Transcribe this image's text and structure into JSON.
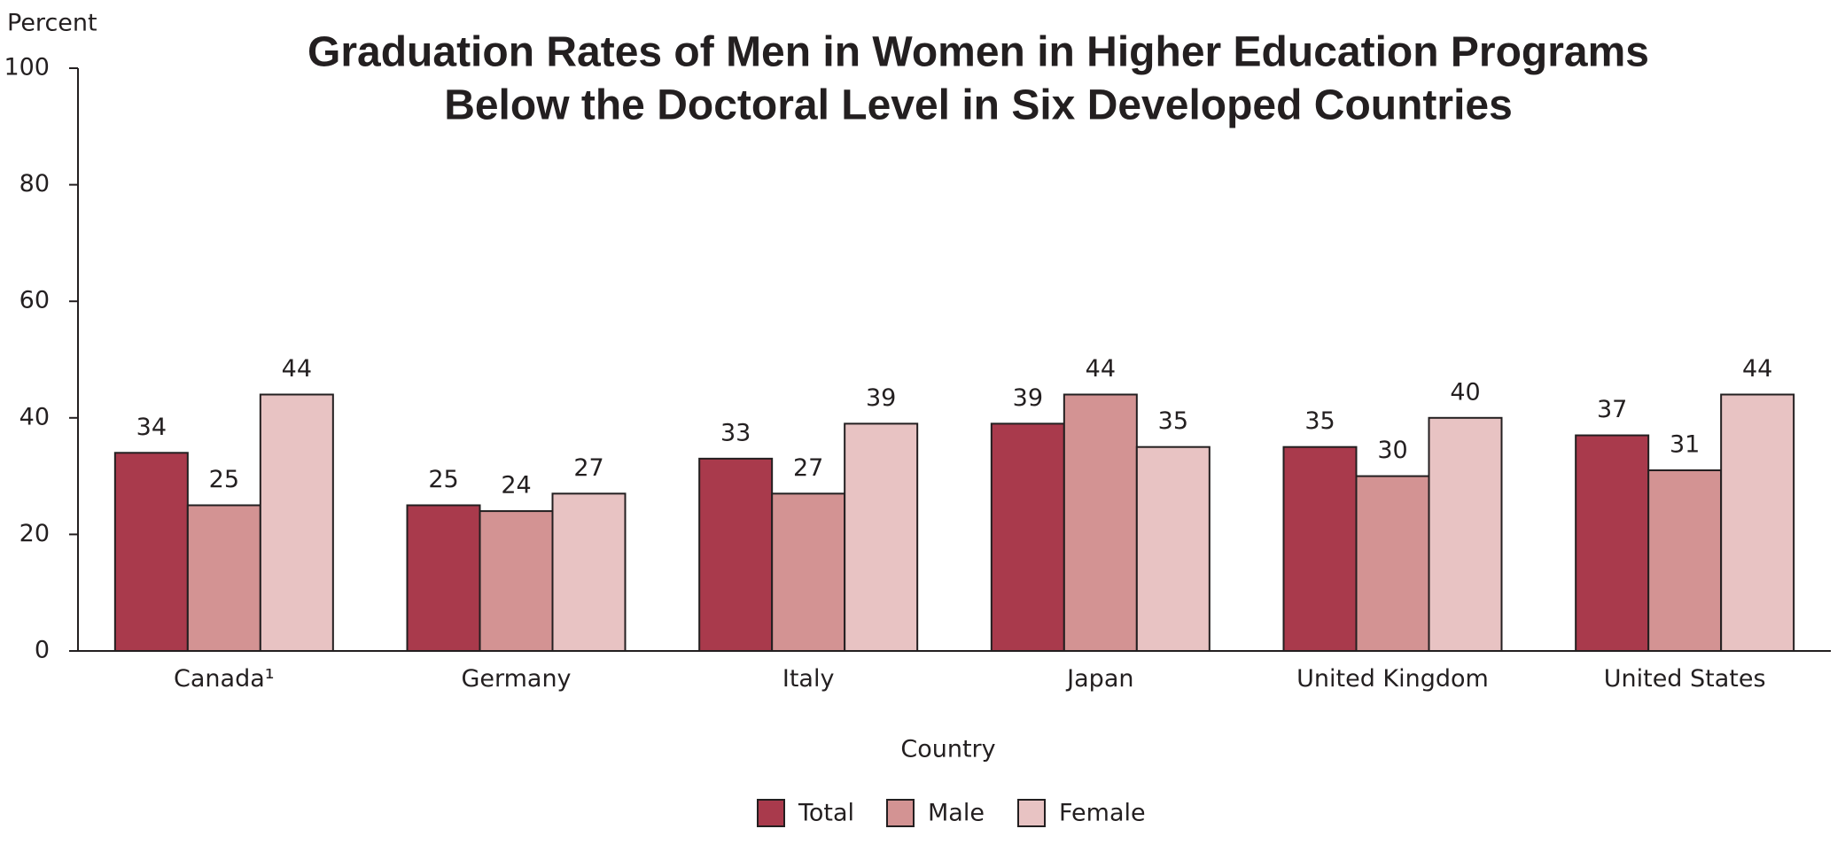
{
  "chart_data": {
    "type": "bar",
    "title": [
      "Graduation Rates of Men in Women in Higher Education Programs",
      "Below the Doctoral Level in Six Developed Countries"
    ],
    "y_label": "Percent",
    "x_label": "Country",
    "categories": [
      "Canada¹",
      "Germany",
      "Italy",
      "Japan",
      "United Kingdom",
      "United States"
    ],
    "series": [
      {
        "name": "Total",
        "color": "#a93a4c",
        "values": [
          34,
          25,
          33,
          39,
          35,
          37
        ]
      },
      {
        "name": "Male",
        "color": "#d39393",
        "values": [
          25,
          24,
          27,
          44,
          30,
          31
        ]
      },
      {
        "name": "Female",
        "color": "#e8c3c3",
        "values": [
          44,
          27,
          39,
          35,
          40,
          44
        ]
      }
    ],
    "ylim": [
      0,
      100
    ],
    "yticks": [
      0,
      20,
      40,
      60,
      80,
      100
    ],
    "grid": false,
    "legend": "bottom"
  }
}
